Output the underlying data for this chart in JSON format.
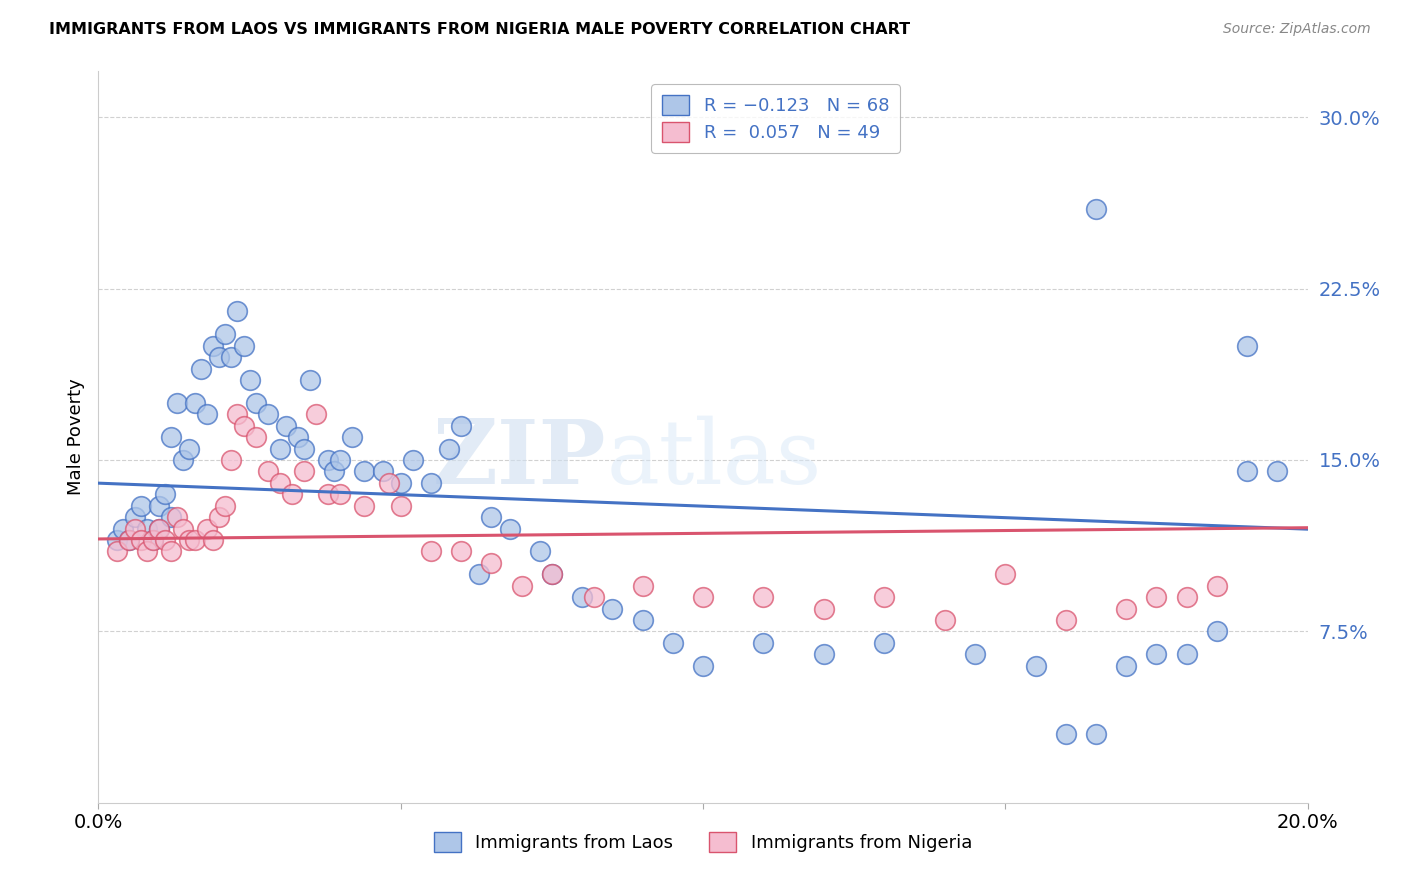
{
  "title": "IMMIGRANTS FROM LAOS VS IMMIGRANTS FROM NIGERIA MALE POVERTY CORRELATION CHART",
  "source": "Source: ZipAtlas.com",
  "ylabel": "Male Poverty",
  "yticks": [
    0.075,
    0.15,
    0.225,
    0.3
  ],
  "ytick_labels": [
    "7.5%",
    "15.0%",
    "22.5%",
    "30.0%"
  ],
  "xlim": [
    0.0,
    0.2
  ],
  "ylim": [
    0.0,
    0.32
  ],
  "legend_r1": "R = -0.123",
  "legend_n1": "N = 68",
  "legend_r2": "R =  0.057",
  "legend_n2": "N = 49",
  "color_laos": "#aec6e8",
  "color_nigeria": "#f5bdd0",
  "line_color_laos": "#4472c4",
  "line_color_nigeria": "#d9546e",
  "background_color": "#ffffff",
  "watermark_zip": "ZIP",
  "watermark_atlas": "atlas",
  "laos_x": [
    0.003,
    0.004,
    0.005,
    0.006,
    0.007,
    0.008,
    0.009,
    0.01,
    0.01,
    0.011,
    0.012,
    0.012,
    0.013,
    0.014,
    0.015,
    0.016,
    0.017,
    0.018,
    0.019,
    0.02,
    0.021,
    0.022,
    0.023,
    0.024,
    0.025,
    0.026,
    0.028,
    0.03,
    0.031,
    0.033,
    0.034,
    0.035,
    0.038,
    0.039,
    0.04,
    0.042,
    0.044,
    0.047,
    0.05,
    0.052,
    0.055,
    0.058,
    0.06,
    0.063,
    0.065,
    0.068,
    0.073,
    0.075,
    0.08,
    0.085,
    0.09,
    0.095,
    0.1,
    0.11,
    0.12,
    0.13,
    0.145,
    0.155,
    0.16,
    0.165,
    0.17,
    0.175,
    0.18,
    0.185,
    0.19,
    0.195,
    0.19,
    0.165
  ],
  "laos_y": [
    0.115,
    0.12,
    0.115,
    0.125,
    0.13,
    0.12,
    0.115,
    0.12,
    0.13,
    0.135,
    0.125,
    0.16,
    0.175,
    0.15,
    0.155,
    0.175,
    0.19,
    0.17,
    0.2,
    0.195,
    0.205,
    0.195,
    0.215,
    0.2,
    0.185,
    0.175,
    0.17,
    0.155,
    0.165,
    0.16,
    0.155,
    0.185,
    0.15,
    0.145,
    0.15,
    0.16,
    0.145,
    0.145,
    0.14,
    0.15,
    0.14,
    0.155,
    0.165,
    0.1,
    0.125,
    0.12,
    0.11,
    0.1,
    0.09,
    0.085,
    0.08,
    0.07,
    0.06,
    0.07,
    0.065,
    0.07,
    0.065,
    0.06,
    0.03,
    0.03,
    0.06,
    0.065,
    0.065,
    0.075,
    0.2,
    0.145,
    0.145,
    0.26
  ],
  "nigeria_x": [
    0.003,
    0.005,
    0.006,
    0.007,
    0.008,
    0.009,
    0.01,
    0.011,
    0.012,
    0.013,
    0.014,
    0.015,
    0.016,
    0.018,
    0.019,
    0.02,
    0.021,
    0.022,
    0.023,
    0.024,
    0.026,
    0.028,
    0.03,
    0.032,
    0.034,
    0.036,
    0.038,
    0.04,
    0.044,
    0.048,
    0.05,
    0.055,
    0.06,
    0.065,
    0.07,
    0.075,
    0.082,
    0.09,
    0.1,
    0.11,
    0.12,
    0.13,
    0.14,
    0.15,
    0.16,
    0.17,
    0.175,
    0.18,
    0.185
  ],
  "nigeria_y": [
    0.11,
    0.115,
    0.12,
    0.115,
    0.11,
    0.115,
    0.12,
    0.115,
    0.11,
    0.125,
    0.12,
    0.115,
    0.115,
    0.12,
    0.115,
    0.125,
    0.13,
    0.15,
    0.17,
    0.165,
    0.16,
    0.145,
    0.14,
    0.135,
    0.145,
    0.17,
    0.135,
    0.135,
    0.13,
    0.14,
    0.13,
    0.11,
    0.11,
    0.105,
    0.095,
    0.1,
    0.09,
    0.095,
    0.09,
    0.09,
    0.085,
    0.09,
    0.08,
    0.1,
    0.08,
    0.085,
    0.09,
    0.09,
    0.095
  ]
}
